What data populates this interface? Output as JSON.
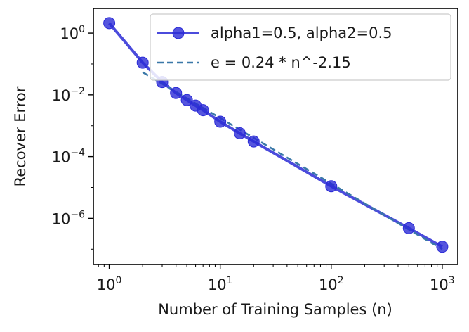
{
  "chart_data": {
    "type": "line",
    "title": "",
    "xlabel": "Number of Training Samples (n)",
    "ylabel": "Recover Error",
    "xscale": "log",
    "yscale": "log",
    "xlim": [
      0.72,
      1380
    ],
    "ylim": [
      3.2e-08,
      6.3
    ],
    "xticks": [
      {
        "value": 1,
        "base": "10",
        "exp": "0"
      },
      {
        "value": 10,
        "base": "10",
        "exp": "1"
      },
      {
        "value": 100,
        "base": "10",
        "exp": "2"
      },
      {
        "value": 1000,
        "base": "10",
        "exp": "3"
      }
    ],
    "yticks": [
      {
        "value": 1,
        "base": "10",
        "exp": "0"
      },
      {
        "value": 0.01,
        "base": "10",
        "exp": "−2"
      },
      {
        "value": 0.0001,
        "base": "10",
        "exp": "−4"
      },
      {
        "value": 1e-06,
        "base": "10",
        "exp": "−6"
      }
    ],
    "grid": false,
    "legend_position": "top-right",
    "series": [
      {
        "name": "alpha1=0.5, alpha2=0.5",
        "style": "solid-marker",
        "color": "#2b2bd6",
        "x": [
          1,
          2,
          3,
          4,
          5,
          6,
          7,
          10,
          15,
          20,
          100,
          500,
          1000
        ],
        "y": [
          2.1,
          0.11,
          0.026,
          0.0115,
          0.0068,
          0.0045,
          0.0032,
          0.00135,
          0.00057,
          0.00031,
          1.1e-05,
          4.8e-07,
          1.2e-07
        ]
      },
      {
        "name": "e = 0.24 * n^-2.15",
        "style": "dashed",
        "color": "#3a78a8",
        "x": [
          2,
          1000
        ],
        "y": [
          0.054,
          1e-07
        ]
      }
    ]
  }
}
